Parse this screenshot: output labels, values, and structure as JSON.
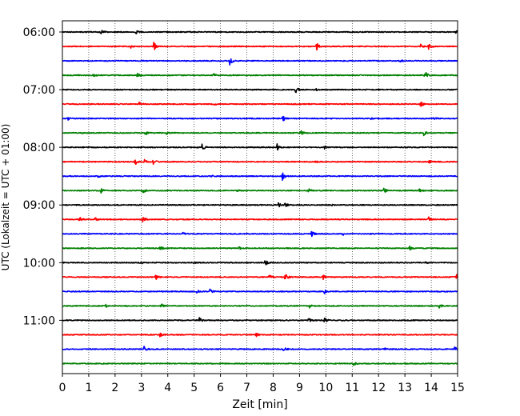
{
  "chart_data": {
    "type": "line",
    "title": "",
    "xlabel": "Zeit  [min]",
    "ylabel": "UTC (Lokalzeit = UTC + 01:00)",
    "xlim": [
      0,
      15
    ],
    "x_ticks": [
      "0",
      "1",
      "2",
      "3",
      "4",
      "5",
      "6",
      "7",
      "8",
      "9",
      "10",
      "11",
      "12",
      "13",
      "14",
      "15"
    ],
    "y_ticks": [
      "06:00",
      "07:00",
      "08:00",
      "09:00",
      "10:00",
      "11:00"
    ],
    "grid": "vertical-dotted",
    "colors": [
      "#000000",
      "#ff0000",
      "#0000ff",
      "#008000"
    ],
    "trace_interval_min": 15,
    "series": [
      {
        "start": "06:00",
        "color": "#000000",
        "events": [
          [
            1.45,
            1.0
          ],
          [
            2.8,
            0.5
          ],
          [
            14.95,
            1.0
          ]
        ]
      },
      {
        "start": "06:15",
        "color": "#ff0000",
        "events": [
          [
            2.6,
            0.5
          ],
          [
            3.45,
            2.2
          ],
          [
            9.65,
            1.6
          ],
          [
            13.6,
            0.8
          ],
          [
            13.9,
            1.3
          ]
        ]
      },
      {
        "start": "06:30",
        "color": "#0000ff",
        "events": [
          [
            6.35,
            2.0
          ],
          [
            12.8,
            0.5
          ]
        ]
      },
      {
        "start": "06:45",
        "color": "#008000",
        "events": [
          [
            1.2,
            0.6
          ],
          [
            2.85,
            1.0
          ],
          [
            5.75,
            0.5
          ],
          [
            13.75,
            1.8
          ]
        ]
      },
      {
        "start": "07:00",
        "color": "#000000",
        "events": [
          [
            8.85,
            1.5
          ],
          [
            9.55,
            0.9
          ]
        ]
      },
      {
        "start": "07:15",
        "color": "#ff0000",
        "events": [
          [
            2.9,
            1.2
          ],
          [
            5.75,
            0.4
          ],
          [
            13.6,
            1.3
          ]
        ]
      },
      {
        "start": "07:30",
        "color": "#0000ff",
        "events": [
          [
            0.2,
            0.6
          ],
          [
            8.35,
            1.6
          ],
          [
            11.7,
            0.4
          ],
          [
            14.1,
            0.4
          ]
        ]
      },
      {
        "start": "07:45",
        "color": "#008000",
        "events": [
          [
            3.15,
            1.2
          ],
          [
            3.95,
            0.5
          ],
          [
            9.05,
            1.0
          ],
          [
            13.7,
            1.4
          ]
        ]
      },
      {
        "start": "08:00",
        "color": "#000000",
        "events": [
          [
            5.3,
            1.3
          ],
          [
            8.15,
            1.4
          ],
          [
            9.95,
            0.5
          ]
        ]
      },
      {
        "start": "08:15",
        "color": "#ff0000",
        "events": [
          [
            2.75,
            1.5
          ],
          [
            3.1,
            1.2
          ],
          [
            3.45,
            0.9
          ],
          [
            9.6,
            0.6
          ],
          [
            13.9,
            0.8
          ]
        ]
      },
      {
        "start": "08:30",
        "color": "#0000ff",
        "events": [
          [
            1.35,
            0.5
          ],
          [
            5.65,
            0.4
          ],
          [
            8.35,
            1.5
          ]
        ]
      },
      {
        "start": "08:45",
        "color": "#008000",
        "events": [
          [
            1.45,
            1.0
          ],
          [
            3.05,
            1.0
          ],
          [
            6.6,
            0.5
          ],
          [
            9.35,
            1.0
          ],
          [
            12.2,
            1.0
          ],
          [
            13.55,
            1.2
          ]
        ]
      },
      {
        "start": "09:00",
        "color": "#000000",
        "events": [
          [
            8.2,
            0.8
          ],
          [
            8.45,
            0.8
          ],
          [
            10.2,
            0.3
          ]
        ]
      },
      {
        "start": "09:15",
        "color": "#ff0000",
        "events": [
          [
            0.65,
            1.0
          ],
          [
            1.25,
            0.9
          ],
          [
            3.05,
            1.2
          ],
          [
            13.9,
            0.9
          ]
        ]
      },
      {
        "start": "09:30",
        "color": "#0000ff",
        "events": [
          [
            4.55,
            0.6
          ],
          [
            9.45,
            1.2
          ],
          [
            10.65,
            0.5
          ]
        ]
      },
      {
        "start": "09:45",
        "color": "#008000",
        "events": [
          [
            3.7,
            0.9
          ],
          [
            6.7,
            0.5
          ],
          [
            13.15,
            1.1
          ]
        ]
      },
      {
        "start": "10:00",
        "color": "#000000",
        "events": [
          [
            2.95,
            0.8
          ],
          [
            5.0,
            0.5
          ],
          [
            7.7,
            1.2
          ],
          [
            13.8,
            0.5
          ]
        ]
      },
      {
        "start": "10:15",
        "color": "#ff0000",
        "events": [
          [
            3.55,
            1.2
          ],
          [
            7.85,
            0.9
          ],
          [
            8.45,
            1.5
          ],
          [
            9.9,
            1.0
          ],
          [
            14.95,
            1.3
          ]
        ]
      },
      {
        "start": "10:30",
        "color": "#0000ff",
        "events": [
          [
            5.1,
            0.6
          ],
          [
            5.6,
            0.8
          ],
          [
            9.95,
            1.3
          ]
        ]
      },
      {
        "start": "10:45",
        "color": "#008000",
        "events": [
          [
            1.65,
            0.5
          ],
          [
            3.75,
            0.9
          ],
          [
            9.35,
            1.3
          ],
          [
            14.3,
            0.9
          ]
        ]
      },
      {
        "start": "11:00",
        "color": "#000000",
        "events": [
          [
            5.2,
            1.3
          ],
          [
            9.35,
            0.9
          ],
          [
            9.95,
            1.0
          ]
        ]
      },
      {
        "start": "11:15",
        "color": "#ff0000",
        "events": [
          [
            3.7,
            1.0
          ],
          [
            7.35,
            1.0
          ]
        ]
      },
      {
        "start": "11:30",
        "color": "#0000ff",
        "events": [
          [
            3.1,
            1.0
          ],
          [
            8.4,
            1.0
          ],
          [
            12.2,
            0.6
          ],
          [
            14.9,
            1.5
          ]
        ]
      },
      {
        "start": "11:45",
        "color": "#008000",
        "events": [
          [
            11.05,
            0.8
          ]
        ]
      }
    ]
  }
}
